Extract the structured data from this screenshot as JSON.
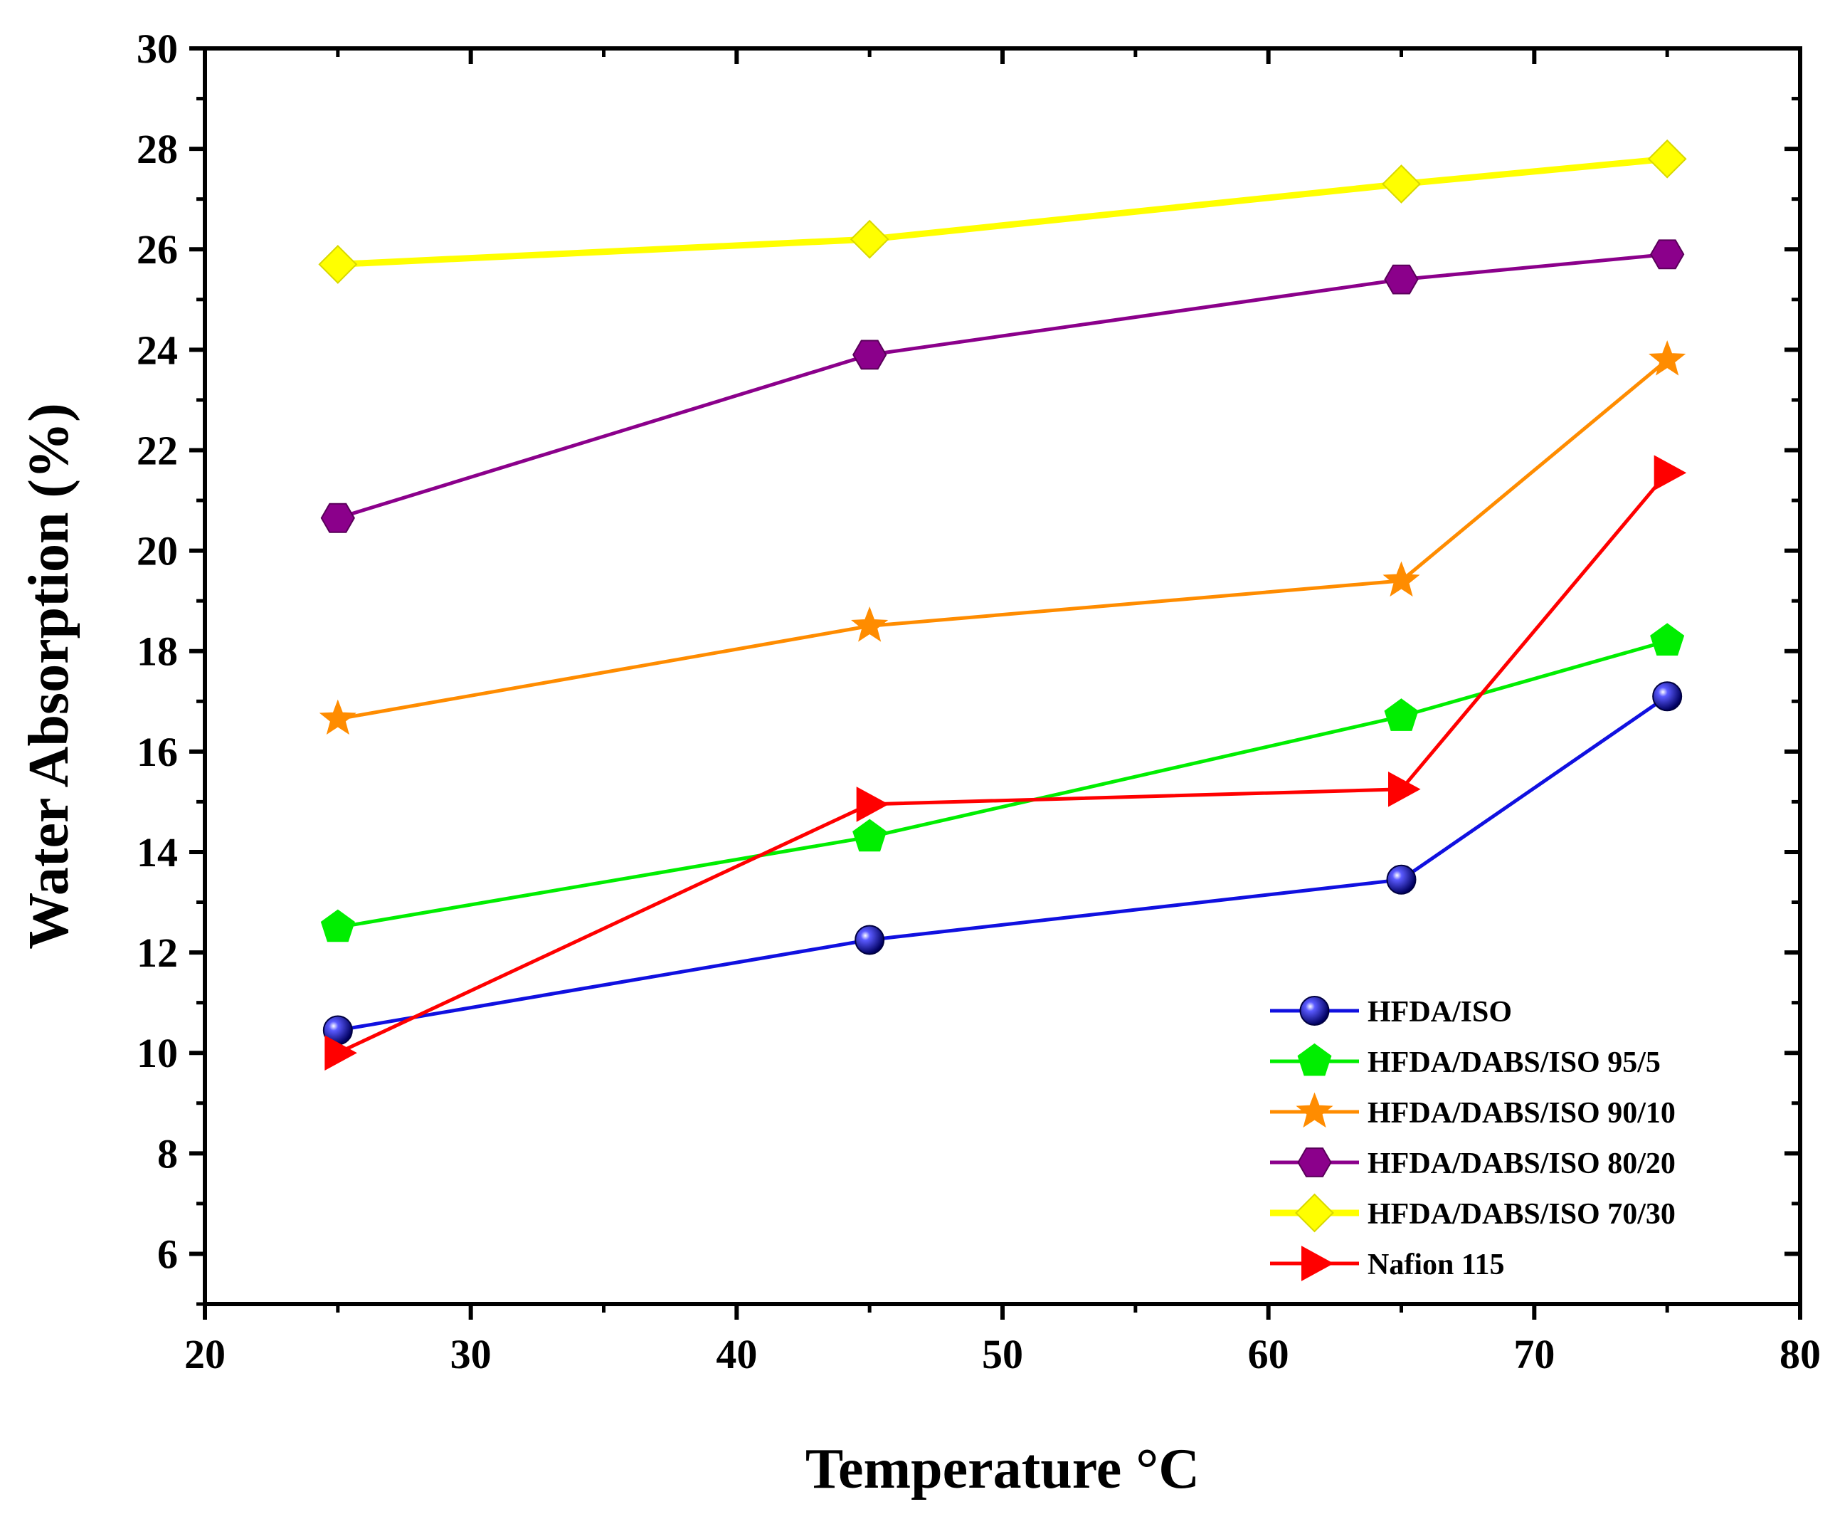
{
  "chart_data": {
    "type": "line",
    "title": "",
    "xlabel": "Temperature °C",
    "ylabel": "Water Absorption (%)",
    "xlim": [
      20,
      80
    ],
    "ylim": [
      5,
      30
    ],
    "xticks": [
      20,
      30,
      40,
      50,
      60,
      70,
      80
    ],
    "yticks": [
      6,
      8,
      10,
      12,
      14,
      16,
      18,
      20,
      22,
      24,
      26,
      28,
      30
    ],
    "x": [
      25,
      45,
      65,
      75
    ],
    "legend_position": "bottom-right",
    "series": [
      {
        "name": "HFDA/ISO",
        "color": "#1010e0",
        "marker": "sphere",
        "values": [
          10.45,
          12.25,
          13.45,
          17.1
        ]
      },
      {
        "name": "HFDA/DABS/ISO 95/5",
        "color": "#00ee00",
        "marker": "pentagon",
        "values": [
          12.5,
          14.3,
          16.7,
          18.2
        ]
      },
      {
        "name": "HFDA/DABS/ISO 90/10",
        "color": "#ff8c00",
        "marker": "star",
        "values": [
          16.65,
          18.5,
          19.4,
          23.8
        ]
      },
      {
        "name": "HFDA/DABS/ISO 80/20",
        "color": "#8b008b",
        "marker": "hexagon",
        "values": [
          20.65,
          23.9,
          25.4,
          25.9
        ]
      },
      {
        "name": "HFDA/DABS/ISO 70/30",
        "color": "#ffff00",
        "marker": "diamond",
        "values": [
          25.7,
          26.2,
          27.3,
          27.8
        ]
      },
      {
        "name": "Nafion 115",
        "color": "#ff0000",
        "marker": "triangle-right",
        "values": [
          10.0,
          14.95,
          15.25,
          21.55
        ]
      }
    ]
  }
}
